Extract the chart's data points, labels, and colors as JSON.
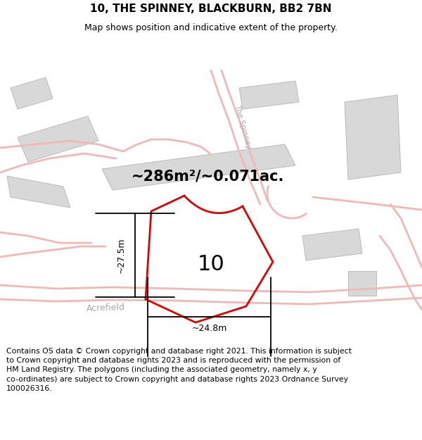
{
  "title": "10, THE SPINNEY, BLACKBURN, BB2 7BN",
  "subtitle": "Map shows position and indicative extent of the property.",
  "footer": "Contains OS data © Crown copyright and database right 2021. This information is subject\nto Crown copyright and database rights 2023 and is reproduced with the permission of\nHM Land Registry. The polygons (including the associated geometry, namely x, y\nco-ordinates) are subject to Crown copyright and database rights 2023 Ordnance Survey\n100026316.",
  "area_label": "~286m²/~0.071ac.",
  "plot_number": "10",
  "dim_horiz": "~24.8m",
  "dim_vert": "~27.5m",
  "map_bg": "#f0eeec",
  "road_color": "#f2b8b8",
  "building_color": "#d8d8d8",
  "building_edge": "#c0c0c0",
  "red_plot_color": "#e00000",
  "road_label_color": "#aaaaaa",
  "title_fontsize": 11,
  "subtitle_fontsize": 9,
  "footer_fontsize": 7.8
}
